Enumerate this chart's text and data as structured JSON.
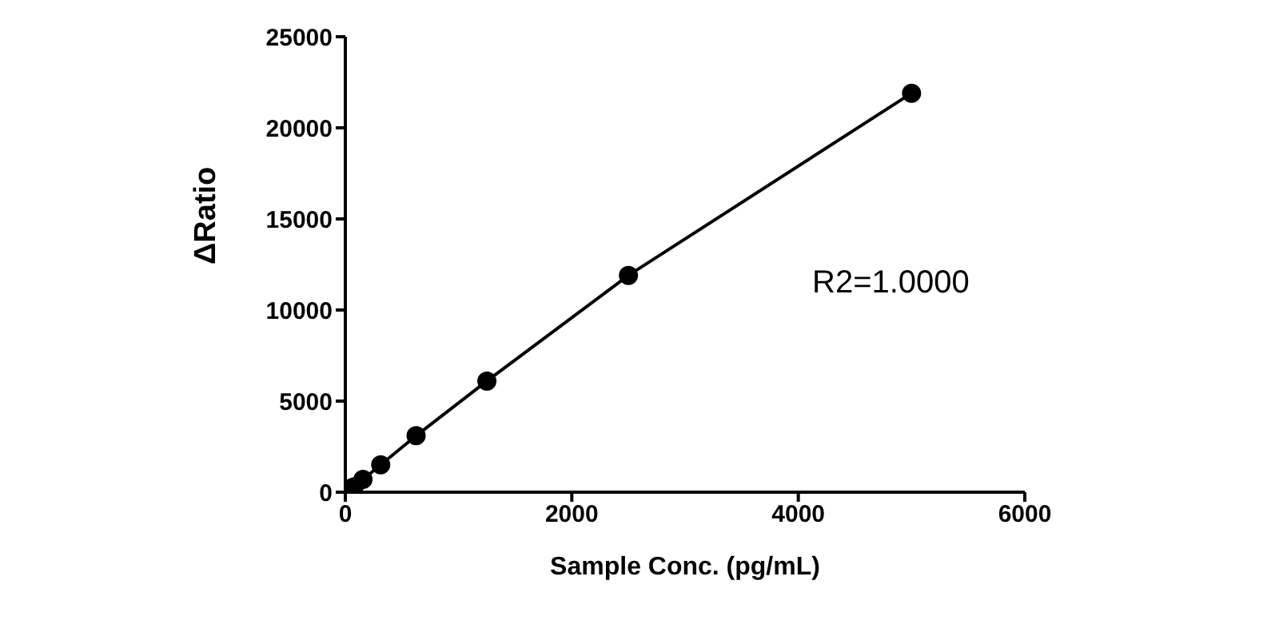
{
  "chart_data": {
    "type": "line",
    "xlabel": "Sample Conc. (pg/mL)",
    "ylabel": "ΔRatio",
    "x": [
      0,
      39,
      78,
      156,
      312.5,
      625,
      1250,
      2500,
      5000
    ],
    "series": [
      {
        "color": "#000000",
        "values": [
          0,
          200,
          300,
          700,
          1500,
          3100,
          6100,
          11900,
          21900
        ]
      }
    ],
    "xlim": [
      0,
      6000
    ],
    "xticks": [
      0,
      2000,
      4000,
      6000
    ],
    "ylim": [
      0,
      25000
    ],
    "yticks": [
      0,
      5000,
      10000,
      15000,
      20000,
      25000
    ],
    "grid": false,
    "marker": "circle",
    "line_style": "solid",
    "annotations": [
      "R2=1.0000"
    ]
  }
}
